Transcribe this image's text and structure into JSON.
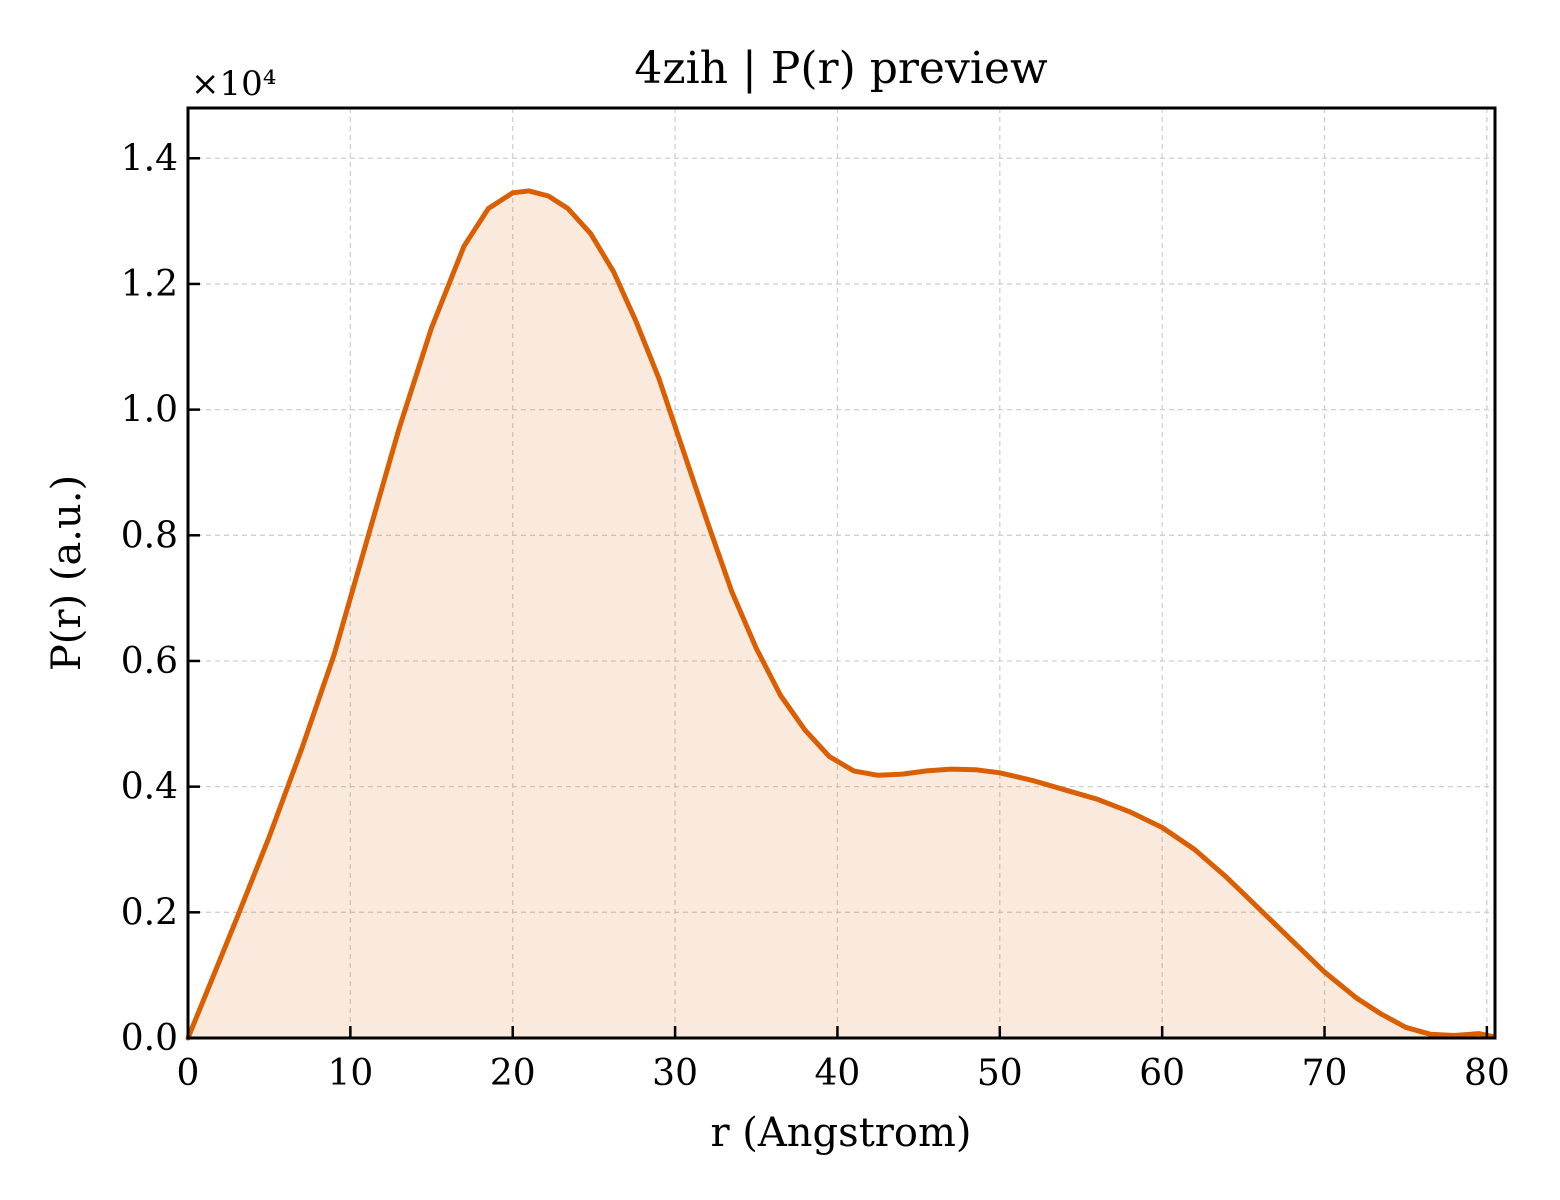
{
  "chart_data": {
    "type": "area",
    "title": "4zih | P(r) preview",
    "xlabel": "r (Angstrom)",
    "ylabel": "P(r) (a.u.)",
    "y_scale_multiplier": "×10⁴",
    "xlim": [
      0,
      80.5
    ],
    "ylim": [
      0,
      1.48
    ],
    "x_ticks": [
      0,
      10,
      20,
      30,
      40,
      50,
      60,
      70,
      80
    ],
    "x_tick_labels": [
      "0",
      "10",
      "20",
      "30",
      "40",
      "50",
      "60",
      "70",
      "80"
    ],
    "y_ticks": [
      0.0,
      0.2,
      0.4,
      0.6,
      0.8,
      1.0,
      1.2,
      1.4
    ],
    "y_tick_labels": [
      "0.0",
      "0.2",
      "0.4",
      "0.6",
      "0.8",
      "1.0",
      "1.2",
      "1.4"
    ],
    "grid": true,
    "line_color": "#d95f02",
    "fill_color": "#d95f02",
    "fill_opacity": 0.13,
    "series": [
      {
        "x": [
          0,
          1.5,
          3,
          5,
          7,
          9,
          11,
          13,
          15,
          17,
          18.5,
          20,
          21,
          22.2,
          23.4,
          24.8,
          26.2,
          27.6,
          29,
          30.5,
          32,
          33.5,
          35,
          36.5,
          38,
          39.5,
          41,
          42.5,
          44,
          45.5,
          47,
          48.5,
          50,
          52,
          54,
          56,
          58,
          60,
          62,
          64,
          66,
          68,
          70,
          72,
          73.5,
          75,
          76.5,
          78,
          79.5,
          80.4
        ],
        "y": [
          0,
          0.095,
          0.19,
          0.32,
          0.46,
          0.61,
          0.79,
          0.97,
          1.13,
          1.26,
          1.32,
          1.345,
          1.348,
          1.34,
          1.32,
          1.28,
          1.22,
          1.14,
          1.05,
          0.935,
          0.82,
          0.71,
          0.62,
          0.545,
          0.49,
          0.448,
          0.425,
          0.418,
          0.42,
          0.425,
          0.428,
          0.427,
          0.422,
          0.41,
          0.395,
          0.38,
          0.36,
          0.335,
          0.3,
          0.255,
          0.205,
          0.155,
          0.105,
          0.063,
          0.038,
          0.017,
          0.006,
          0.004,
          0.007,
          0.002
        ]
      }
    ]
  }
}
